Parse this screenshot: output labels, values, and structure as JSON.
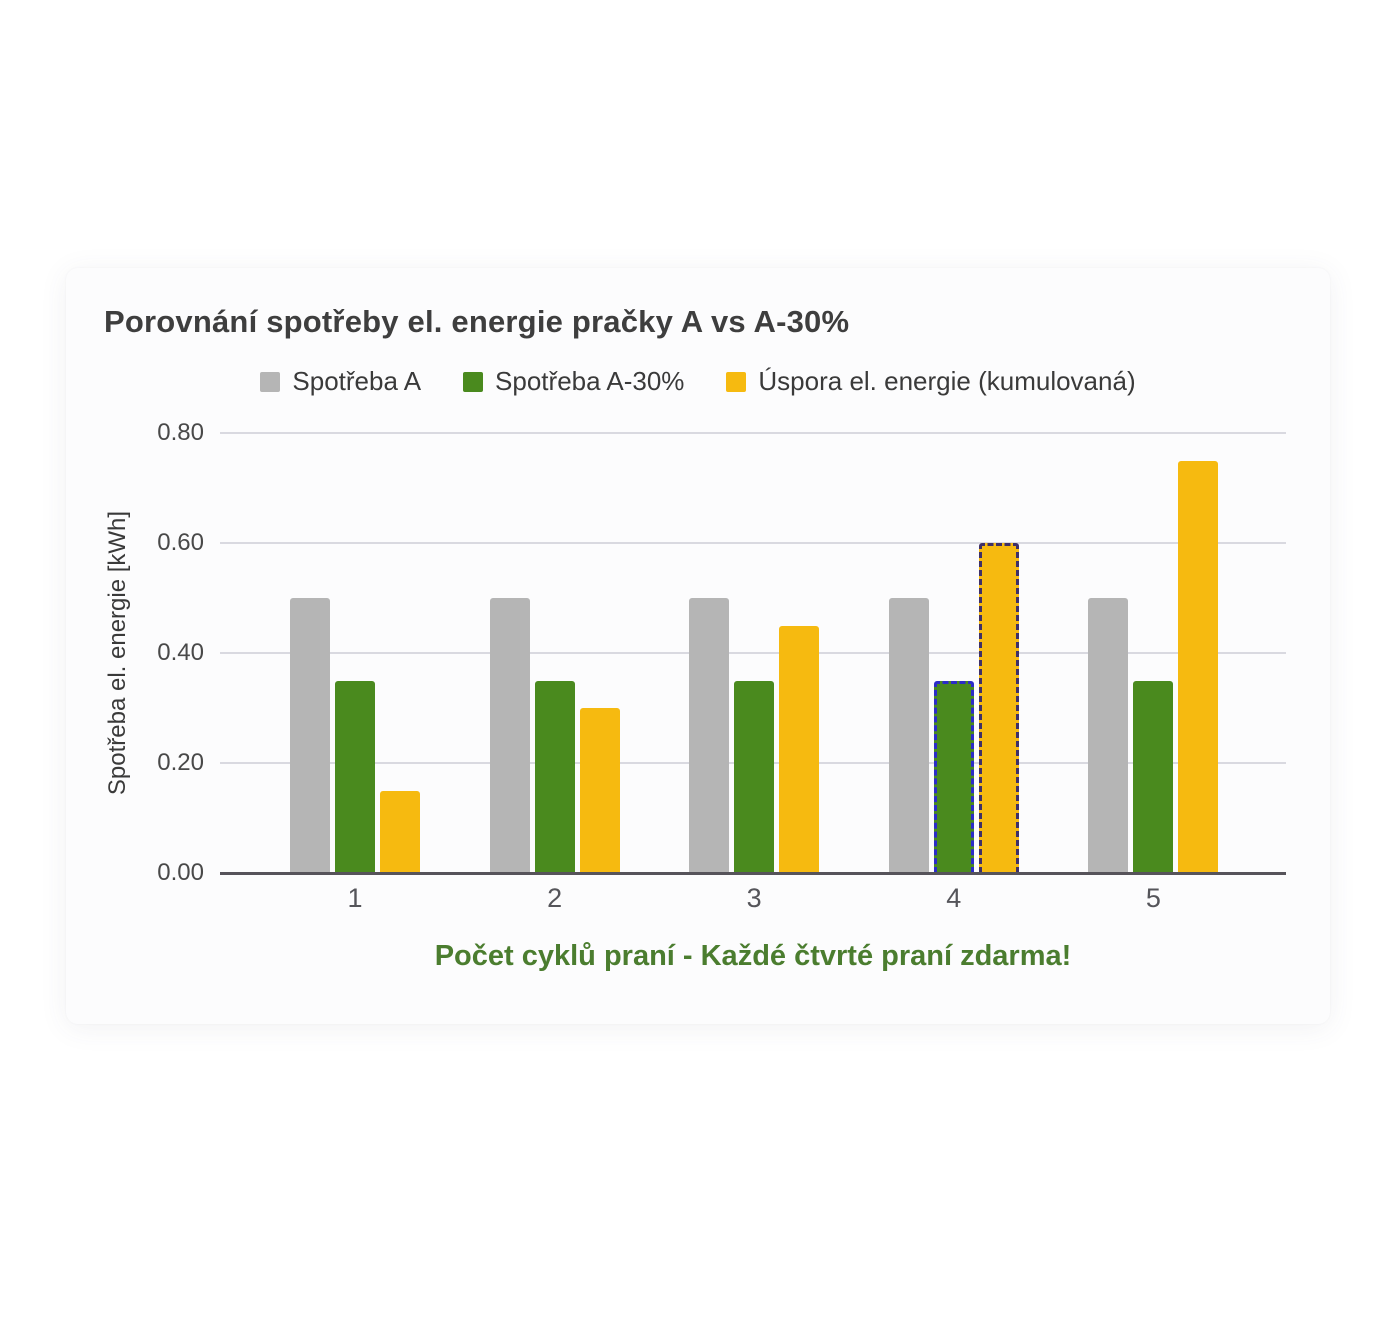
{
  "page": {
    "background_color": "#ffffff"
  },
  "card": {
    "background_color": "#fcfcfd"
  },
  "chart_data": {
    "type": "bar",
    "title": "Porovnání spotřeby el. energie pračky A vs A-30%",
    "title_color": "#3e3e3e",
    "categories": [
      "1",
      "2",
      "3",
      "4",
      "5"
    ],
    "series": [
      {
        "name": "Spotřeba A",
        "color": "#b5b5b5",
        "values": [
          0.5,
          0.5,
          0.5,
          0.5,
          0.5
        ]
      },
      {
        "name": "Spotřeba A-30%",
        "color": "#4a8a1e",
        "values": [
          0.35,
          0.35,
          0.35,
          0.35,
          0.35
        ],
        "highlight": {
          "category_index": 3,
          "border_style": "dashed",
          "border_color": "#2c2cc8"
        }
      },
      {
        "name": "Úspora el. energie (kumulovaná)",
        "color": "#f6ba10",
        "values": [
          0.15,
          0.3,
          0.45,
          0.6,
          0.75
        ],
        "highlight": {
          "category_index": 3,
          "border_style": "dashed",
          "border_color": "#3e3068"
        }
      }
    ],
    "xlabel": "Počet cyklů praní - Každé čtvrté praní zdarma!",
    "xlabel_color": "#4b7d2f",
    "ylabel": "Spotřeba el. energie [kWh]",
    "ylim": [
      0,
      0.8
    ],
    "yticks": [
      "0.00",
      "0.20",
      "0.40",
      "0.60",
      "0.80"
    ],
    "ytick_values": [
      0.0,
      0.2,
      0.4,
      0.6,
      0.8
    ],
    "grid": true,
    "legend_position": "top"
  }
}
